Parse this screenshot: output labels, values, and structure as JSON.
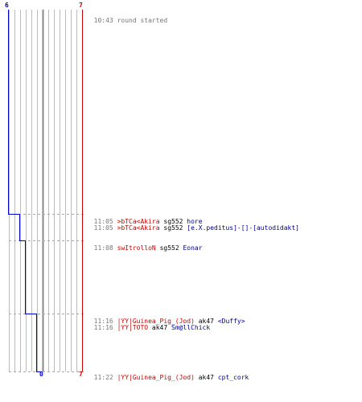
{
  "colors": {
    "team_blue": "#0000cc",
    "team_red": "#cc0000",
    "grid": "#bbbbbb",
    "dash": "#aaaaaa",
    "time": "#777777",
    "victim": "#000088"
  },
  "scores": {
    "blue_top": "6",
    "red_top": "7",
    "blue_bottom": "0",
    "red_bottom": "7"
  },
  "round_start": {
    "time": "10:43",
    "text": "round started"
  },
  "events": [
    {
      "time": "11:05",
      "killer": ">bTCa<Akira",
      "weapon": "sg552",
      "victim": "hore"
    },
    {
      "time": "11:05",
      "killer": ">bTCa<Akira",
      "weapon": "sg552",
      "victim": "[e.X.peditus]-[]-[autodidakt]"
    },
    {
      "time": "11:08",
      "killer": "swItrolloN",
      "weapon": "sg552",
      "victim": "Eonar"
    },
    {
      "time": "11:16",
      "killer": "|YY|Guinea_Pig_(Jod)",
      "weapon": "ak47",
      "victim": "<Duffy>"
    },
    {
      "time": "11:16",
      "killer": "|YY|TOTO",
      "weapon": "ak47",
      "victim": "Sm@llChick"
    },
    {
      "time": "11:22",
      "killer": "|YY|Guinea_Pig_(Jod)",
      "weapon": "ak47",
      "victim": "cpt_cork"
    }
  ]
}
